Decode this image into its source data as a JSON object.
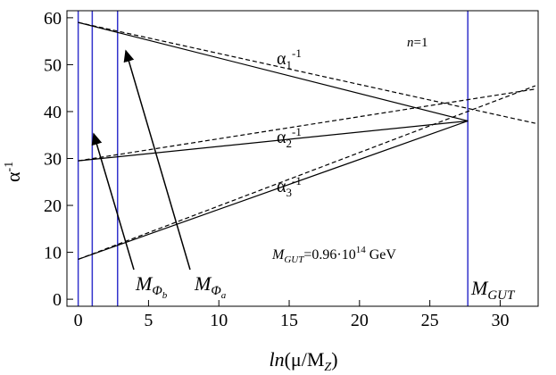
{
  "chart_data": {
    "type": "line",
    "xlabel": [
      "ln",
      "(μ/M",
      "Z",
      ")"
    ],
    "ylabel": [
      "α",
      "-1"
    ],
    "xlim": [
      -0.8,
      32.7
    ],
    "ylim": [
      -1.5,
      61.5
    ],
    "xticks": [
      0,
      5,
      10,
      15,
      20,
      25,
      30
    ],
    "yticks": [
      0,
      10,
      20,
      30,
      40,
      50,
      60
    ],
    "series": [
      {
        "name": [
          "α",
          "1",
          "-1"
        ],
        "color": "#000000",
        "x": [
          0,
          27.7
        ],
        "values": [
          59,
          38
        ]
      },
      {
        "name": [
          "α",
          "2",
          "-1"
        ],
        "color": "#000000",
        "x": [
          0,
          27.7
        ],
        "values": [
          29.5,
          38
        ]
      },
      {
        "name": [
          "α",
          "3",
          "-1"
        ],
        "color": "#000000",
        "x": [
          0,
          27.7
        ],
        "values": [
          8.5,
          38
        ]
      },
      {
        "color": "#000000",
        "dashed": true,
        "x": [
          0,
          32.5
        ],
        "values": [
          59,
          37.5
        ]
      },
      {
        "color": "#000000",
        "dashed": true,
        "x": [
          0,
          32.5
        ],
        "values": [
          29.5,
          44.8
        ]
      },
      {
        "color": "#000000",
        "dashed": true,
        "x": [
          0,
          32.5
        ],
        "values": [
          8.5,
          45.5
        ]
      }
    ],
    "vlines": [
      0,
      1,
      2.8,
      27.7
    ],
    "vline_color": "#3333cc",
    "annotations": {
      "n": [
        "n",
        "=1"
      ],
      "mgut_value": [
        "M",
        "GUT",
        "=0.96·10",
        "14",
        " GeV"
      ],
      "m_phi_b": [
        "M",
        "Φ",
        "b"
      ],
      "m_phi_a": [
        "M",
        "Φ",
        "a"
      ],
      "m_gut": [
        "M",
        "GUT"
      ]
    }
  }
}
